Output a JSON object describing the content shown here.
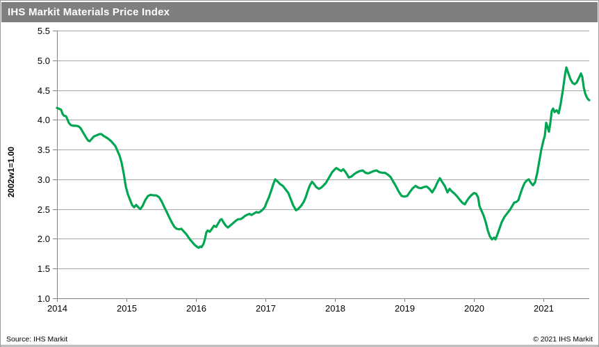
{
  "window": {
    "title": "IHS Markit Materials Price Index"
  },
  "footer": {
    "source": "Source:  IHS Markit",
    "copyright": "© 2021  IHS Markit"
  },
  "colors": {
    "title_bar_bg": "#7f7f7f",
    "title_text": "#ffffff",
    "line_green": "#00a651",
    "gridline": "#a6a6a6",
    "axis": "#808080",
    "tick_label": "#000000",
    "page_border": "#9a9a9a"
  },
  "chart_data": {
    "type": "line",
    "title": "IHS Markit Materials Price Index",
    "xlabel": "",
    "ylabel": "2002w1=1.00",
    "x_ticks": [
      "2014",
      "2015",
      "2016",
      "2017",
      "2018",
      "2019",
      "2020",
      "2021"
    ],
    "y_ticks": [
      "1.0",
      "1.5",
      "2.0",
      "2.5",
      "3.0",
      "3.5",
      "4.0",
      "4.5",
      "5.0",
      "5.5"
    ],
    "xlim": [
      2014,
      2021.66
    ],
    "ylim": [
      1.0,
      5.5
    ],
    "grid": true,
    "legend": "none",
    "series": [
      {
        "name": "IHS Markit Materials Price Index (2002w1=1.00)",
        "color": "#00a651",
        "points": [
          [
            2014.0,
            4.2
          ],
          [
            2014.04,
            4.18
          ],
          [
            2014.06,
            4.17
          ],
          [
            2014.08,
            4.1
          ],
          [
            2014.1,
            4.07
          ],
          [
            2014.13,
            4.06
          ],
          [
            2014.15,
            4.01
          ],
          [
            2014.17,
            3.95
          ],
          [
            2014.2,
            3.91
          ],
          [
            2014.24,
            3.9
          ],
          [
            2014.28,
            3.9
          ],
          [
            2014.31,
            3.89
          ],
          [
            2014.34,
            3.86
          ],
          [
            2014.38,
            3.78
          ],
          [
            2014.42,
            3.7
          ],
          [
            2014.45,
            3.65
          ],
          [
            2014.47,
            3.64
          ],
          [
            2014.5,
            3.68
          ],
          [
            2014.53,
            3.72
          ],
          [
            2014.57,
            3.74
          ],
          [
            2014.61,
            3.76
          ],
          [
            2014.64,
            3.76
          ],
          [
            2014.67,
            3.73
          ],
          [
            2014.7,
            3.71
          ],
          [
            2014.74,
            3.68
          ],
          [
            2014.78,
            3.64
          ],
          [
            2014.81,
            3.6
          ],
          [
            2014.84,
            3.56
          ],
          [
            2014.87,
            3.48
          ],
          [
            2014.9,
            3.4
          ],
          [
            2014.93,
            3.28
          ],
          [
            2014.96,
            3.1
          ],
          [
            2014.99,
            2.88
          ],
          [
            2015.02,
            2.75
          ],
          [
            2015.05,
            2.66
          ],
          [
            2015.08,
            2.57
          ],
          [
            2015.11,
            2.53
          ],
          [
            2015.14,
            2.57
          ],
          [
            2015.17,
            2.53
          ],
          [
            2015.2,
            2.5
          ],
          [
            2015.23,
            2.55
          ],
          [
            2015.27,
            2.65
          ],
          [
            2015.31,
            2.72
          ],
          [
            2015.35,
            2.74
          ],
          [
            2015.39,
            2.73
          ],
          [
            2015.43,
            2.73
          ],
          [
            2015.47,
            2.7
          ],
          [
            2015.51,
            2.62
          ],
          [
            2015.55,
            2.52
          ],
          [
            2015.58,
            2.45
          ],
          [
            2015.62,
            2.35
          ],
          [
            2015.66,
            2.26
          ],
          [
            2015.69,
            2.2
          ],
          [
            2015.72,
            2.17
          ],
          [
            2015.76,
            2.16
          ],
          [
            2015.79,
            2.17
          ],
          [
            2015.82,
            2.13
          ],
          [
            2015.86,
            2.08
          ],
          [
            2015.89,
            2.03
          ],
          [
            2015.92,
            1.98
          ],
          [
            2015.95,
            1.94
          ],
          [
            2015.98,
            1.9
          ],
          [
            2016.01,
            1.87
          ],
          [
            2016.04,
            1.85
          ],
          [
            2016.06,
            1.87
          ],
          [
            2016.08,
            1.86
          ],
          [
            2016.11,
            1.92
          ],
          [
            2016.13,
            2.0
          ],
          [
            2016.15,
            2.11
          ],
          [
            2016.17,
            2.14
          ],
          [
            2016.2,
            2.12
          ],
          [
            2016.23,
            2.17
          ],
          [
            2016.26,
            2.22
          ],
          [
            2016.29,
            2.2
          ],
          [
            2016.32,
            2.26
          ],
          [
            2016.35,
            2.32
          ],
          [
            2016.37,
            2.33
          ],
          [
            2016.4,
            2.27
          ],
          [
            2016.43,
            2.22
          ],
          [
            2016.46,
            2.19
          ],
          [
            2016.49,
            2.22
          ],
          [
            2016.52,
            2.25
          ],
          [
            2016.55,
            2.28
          ],
          [
            2016.58,
            2.31
          ],
          [
            2016.61,
            2.33
          ],
          [
            2016.64,
            2.33
          ],
          [
            2016.67,
            2.35
          ],
          [
            2016.7,
            2.38
          ],
          [
            2016.73,
            2.4
          ],
          [
            2016.77,
            2.42
          ],
          [
            2016.8,
            2.4
          ],
          [
            2016.84,
            2.43
          ],
          [
            2016.87,
            2.45
          ],
          [
            2016.9,
            2.44
          ],
          [
            2016.93,
            2.46
          ],
          [
            2016.96,
            2.49
          ],
          [
            2016.99,
            2.53
          ],
          [
            2017.02,
            2.62
          ],
          [
            2017.05,
            2.7
          ],
          [
            2017.08,
            2.8
          ],
          [
            2017.11,
            2.91
          ],
          [
            2017.14,
            3.0
          ],
          [
            2017.17,
            2.97
          ],
          [
            2017.21,
            2.92
          ],
          [
            2017.25,
            2.89
          ],
          [
            2017.29,
            2.83
          ],
          [
            2017.33,
            2.77
          ],
          [
            2017.36,
            2.68
          ],
          [
            2017.4,
            2.56
          ],
          [
            2017.44,
            2.48
          ],
          [
            2017.47,
            2.5
          ],
          [
            2017.51,
            2.55
          ],
          [
            2017.55,
            2.62
          ],
          [
            2017.58,
            2.7
          ],
          [
            2017.61,
            2.81
          ],
          [
            2017.64,
            2.9
          ],
          [
            2017.67,
            2.96
          ],
          [
            2017.7,
            2.92
          ],
          [
            2017.73,
            2.87
          ],
          [
            2017.77,
            2.84
          ],
          [
            2017.8,
            2.86
          ],
          [
            2017.83,
            2.89
          ],
          [
            2017.87,
            2.94
          ],
          [
            2017.9,
            3.0
          ],
          [
            2017.93,
            3.06
          ],
          [
            2017.96,
            3.12
          ],
          [
            2018.0,
            3.17
          ],
          [
            2018.02,
            3.19
          ],
          [
            2018.06,
            3.16
          ],
          [
            2018.09,
            3.14
          ],
          [
            2018.12,
            3.17
          ],
          [
            2018.16,
            3.11
          ],
          [
            2018.2,
            3.03
          ],
          [
            2018.24,
            3.05
          ],
          [
            2018.28,
            3.09
          ],
          [
            2018.32,
            3.12
          ],
          [
            2018.36,
            3.14
          ],
          [
            2018.4,
            3.15
          ],
          [
            2018.44,
            3.11
          ],
          [
            2018.48,
            3.1
          ],
          [
            2018.52,
            3.12
          ],
          [
            2018.56,
            3.14
          ],
          [
            2018.6,
            3.15
          ],
          [
            2018.64,
            3.12
          ],
          [
            2018.68,
            3.11
          ],
          [
            2018.72,
            3.11
          ],
          [
            2018.76,
            3.08
          ],
          [
            2018.8,
            3.04
          ],
          [
            2018.84,
            2.96
          ],
          [
            2018.88,
            2.88
          ],
          [
            2018.92,
            2.79
          ],
          [
            2018.96,
            2.72
          ],
          [
            2019.0,
            2.71
          ],
          [
            2019.04,
            2.72
          ],
          [
            2019.08,
            2.79
          ],
          [
            2019.12,
            2.85
          ],
          [
            2019.16,
            2.89
          ],
          [
            2019.2,
            2.86
          ],
          [
            2019.24,
            2.85
          ],
          [
            2019.28,
            2.87
          ],
          [
            2019.32,
            2.88
          ],
          [
            2019.36,
            2.84
          ],
          [
            2019.4,
            2.78
          ],
          [
            2019.44,
            2.86
          ],
          [
            2019.48,
            2.96
          ],
          [
            2019.51,
            3.02
          ],
          [
            2019.54,
            2.96
          ],
          [
            2019.58,
            2.89
          ],
          [
            2019.62,
            2.78
          ],
          [
            2019.65,
            2.84
          ],
          [
            2019.68,
            2.8
          ],
          [
            2019.72,
            2.76
          ],
          [
            2019.76,
            2.71
          ],
          [
            2019.8,
            2.65
          ],
          [
            2019.84,
            2.6
          ],
          [
            2019.87,
            2.58
          ],
          [
            2019.9,
            2.64
          ],
          [
            2019.93,
            2.69
          ],
          [
            2019.96,
            2.73
          ],
          [
            2020.0,
            2.77
          ],
          [
            2020.03,
            2.76
          ],
          [
            2020.06,
            2.7
          ],
          [
            2020.08,
            2.55
          ],
          [
            2020.11,
            2.47
          ],
          [
            2020.14,
            2.39
          ],
          [
            2020.17,
            2.28
          ],
          [
            2020.2,
            2.14
          ],
          [
            2020.23,
            2.04
          ],
          [
            2020.26,
            1.99
          ],
          [
            2020.29,
            2.02
          ],
          [
            2020.31,
            1.99
          ],
          [
            2020.34,
            2.08
          ],
          [
            2020.37,
            2.18
          ],
          [
            2020.4,
            2.28
          ],
          [
            2020.44,
            2.37
          ],
          [
            2020.48,
            2.43
          ],
          [
            2020.52,
            2.49
          ],
          [
            2020.55,
            2.55
          ],
          [
            2020.58,
            2.61
          ],
          [
            2020.61,
            2.62
          ],
          [
            2020.64,
            2.65
          ],
          [
            2020.67,
            2.76
          ],
          [
            2020.7,
            2.86
          ],
          [
            2020.73,
            2.94
          ],
          [
            2020.76,
            2.98
          ],
          [
            2020.79,
            3.0
          ],
          [
            2020.82,
            2.94
          ],
          [
            2020.85,
            2.9
          ],
          [
            2020.88,
            2.95
          ],
          [
            2020.91,
            3.1
          ],
          [
            2020.94,
            3.3
          ],
          [
            2020.97,
            3.5
          ],
          [
            2021.0,
            3.65
          ],
          [
            2021.02,
            3.73
          ],
          [
            2021.04,
            3.95
          ],
          [
            2021.06,
            3.88
          ],
          [
            2021.08,
            3.8
          ],
          [
            2021.1,
            3.95
          ],
          [
            2021.12,
            4.15
          ],
          [
            2021.14,
            4.19
          ],
          [
            2021.16,
            4.13
          ],
          [
            2021.19,
            4.16
          ],
          [
            2021.22,
            4.11
          ],
          [
            2021.25,
            4.28
          ],
          [
            2021.28,
            4.5
          ],
          [
            2021.31,
            4.75
          ],
          [
            2021.33,
            4.88
          ],
          [
            2021.36,
            4.78
          ],
          [
            2021.39,
            4.68
          ],
          [
            2021.42,
            4.62
          ],
          [
            2021.45,
            4.6
          ],
          [
            2021.48,
            4.63
          ],
          [
            2021.51,
            4.7
          ],
          [
            2021.54,
            4.78
          ],
          [
            2021.56,
            4.72
          ],
          [
            2021.58,
            4.55
          ],
          [
            2021.6,
            4.45
          ],
          [
            2021.62,
            4.39
          ],
          [
            2021.64,
            4.35
          ],
          [
            2021.66,
            4.33
          ]
        ]
      }
    ]
  }
}
